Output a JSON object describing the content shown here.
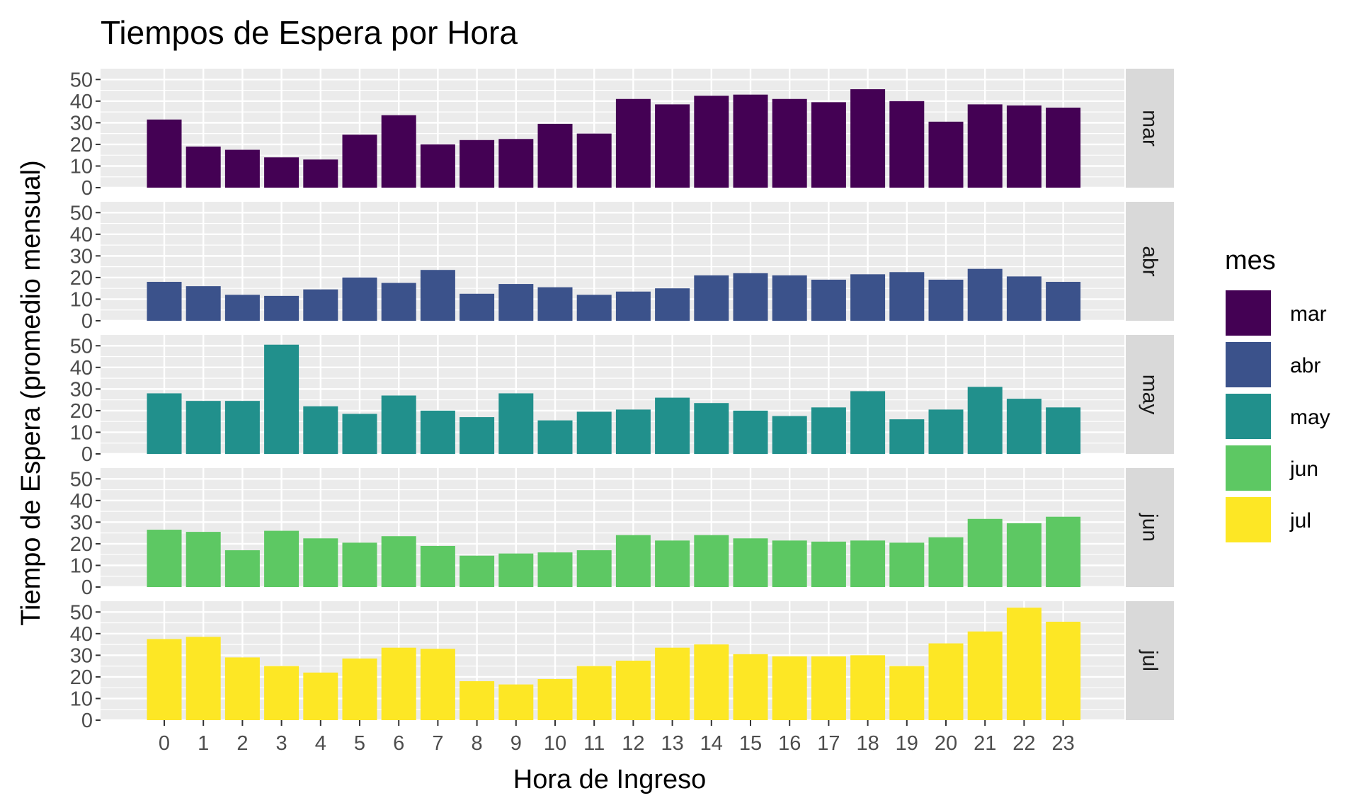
{
  "chart_data": {
    "type": "bar",
    "title": "Tiempos de Espera por Hora",
    "xlabel": "Hora de Ingreso",
    "ylabel": "Tiempo de Espera (promedio mensual)",
    "categories": [
      "0",
      "1",
      "2",
      "3",
      "4",
      "5",
      "6",
      "7",
      "8",
      "9",
      "10",
      "11",
      "12",
      "13",
      "14",
      "15",
      "16",
      "17",
      "18",
      "19",
      "20",
      "21",
      "22",
      "23"
    ],
    "yticks": [
      "0",
      "10",
      "20",
      "30",
      "40",
      "50"
    ],
    "ylim": [
      0,
      55
    ],
    "facet_by": "mes",
    "grid": true,
    "legend": {
      "title": "mes",
      "position": "right",
      "items": [
        "mar",
        "abr",
        "may",
        "jun",
        "jul"
      ]
    },
    "series": [
      {
        "name": "mar",
        "color": "#440154",
        "values": [
          31.5,
          19,
          17.5,
          14,
          13,
          24.5,
          33.5,
          20,
          22,
          22.5,
          29.5,
          25,
          41,
          38.5,
          42.5,
          43,
          41,
          39.5,
          45.5,
          40,
          30.5,
          38.5,
          38,
          37
        ]
      },
      {
        "name": "abr",
        "color": "#3B528B",
        "values": [
          18,
          16,
          12,
          11.5,
          14.5,
          20,
          17.5,
          23.5,
          12.5,
          17,
          15.5,
          12,
          13.5,
          15,
          21,
          22,
          21,
          19,
          21.5,
          22.5,
          19,
          24,
          20.5,
          18
        ]
      },
      {
        "name": "may",
        "color": "#21908C",
        "values": [
          28,
          24.5,
          24.5,
          50.5,
          22,
          18.5,
          27,
          20,
          17,
          28,
          15.5,
          19.5,
          20.5,
          26,
          23.5,
          20,
          17.5,
          21.5,
          29,
          16,
          20.5,
          31,
          25.5,
          21.5
        ]
      },
      {
        "name": "jun",
        "color": "#5DC863",
        "values": [
          26.5,
          25.5,
          17,
          26,
          22.5,
          20.5,
          23.5,
          19,
          14.5,
          15.5,
          16,
          17,
          24,
          21.5,
          24,
          22.5,
          21.5,
          21,
          21.5,
          20.5,
          23,
          31.5,
          29.5,
          32.5
        ]
      },
      {
        "name": "jul",
        "color": "#FDE725",
        "values": [
          37.5,
          38.5,
          29,
          25,
          22,
          28.5,
          33.5,
          33,
          18,
          16.5,
          19,
          25,
          27.5,
          33.5,
          35,
          30.5,
          29.5,
          29.5,
          30,
          25,
          35.5,
          41,
          52,
          45.5
        ]
      }
    ]
  }
}
